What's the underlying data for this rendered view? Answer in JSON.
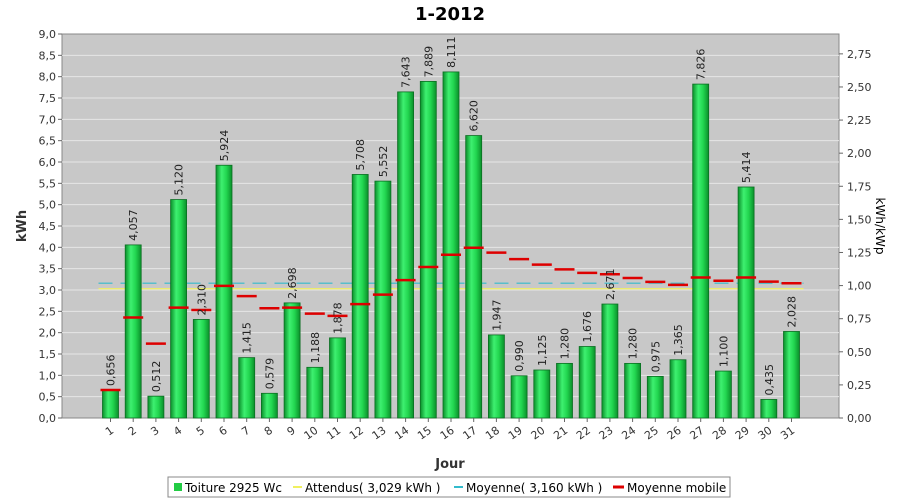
{
  "chart_data": {
    "type": "bar",
    "title": "1-2012",
    "xlabel": "Jour",
    "ylabel": "kWh",
    "ylabel_right": "kWh/kWp",
    "ylim": [
      0,
      9.0
    ],
    "ylim_right": [
      0,
      2.9
    ],
    "y_ticks": [
      "0,0",
      "0,5",
      "1,0",
      "1,5",
      "2,0",
      "2,5",
      "3,0",
      "3,5",
      "4,0",
      "4,5",
      "5,0",
      "5,5",
      "6,0",
      "6,5",
      "7,0",
      "7,5",
      "8,0",
      "8,5",
      "9,0"
    ],
    "y_ticks_right": [
      "0,00",
      "0,25",
      "0,50",
      "0,75",
      "1,00",
      "1,25",
      "1,50",
      "1,75",
      "2,00",
      "2,25",
      "2,50",
      "2,75"
    ],
    "categories": [
      "1",
      "2",
      "3",
      "4",
      "5",
      "6",
      "7",
      "8",
      "9",
      "10",
      "11",
      "12",
      "13",
      "14",
      "15",
      "16",
      "17",
      "18",
      "19",
      "20",
      "21",
      "22",
      "23",
      "24",
      "25",
      "26",
      "27",
      "28",
      "29",
      "30",
      "31"
    ],
    "values": [
      0.656,
      4.057,
      0.512,
      5.12,
      2.31,
      5.924,
      1.415,
      0.579,
      2.698,
      1.188,
      1.878,
      5.708,
      5.552,
      7.643,
      7.889,
      8.111,
      6.62,
      1.947,
      0.99,
      1.125,
      1.28,
      1.676,
      2.671,
      1.28,
      0.975,
      1.365,
      7.826,
      1.1,
      5.414,
      0.435,
      2.028
    ],
    "value_labels": [
      "0,656",
      "4,057",
      "0,512",
      "5,120",
      "2,310",
      "5,924",
      "1,415",
      "0,579",
      "2,698",
      "1,188",
      "1,878",
      "5,708",
      "5,552",
      "7,643",
      "7,889",
      "8,111",
      "6,620",
      "1,947",
      "0,990",
      "1,125",
      "1,280",
      "1,676",
      "2,671",
      "1,280",
      "0,975",
      "1,365",
      "7,826",
      "1,100",
      "5,414",
      "0,435",
      "2,028"
    ],
    "moyenne_mobile": [
      0.656,
      2.356,
      1.742,
      2.586,
      2.531,
      3.097,
      2.857,
      2.572,
      2.586,
      2.446,
      2.394,
      2.67,
      2.891,
      3.23,
      3.54,
      3.826,
      3.99,
      3.876,
      3.724,
      3.594,
      3.484,
      3.401,
      3.369,
      3.282,
      3.19,
      3.12,
      3.294,
      3.216,
      3.292,
      3.197,
      3.159
    ],
    "attendus": 3.029,
    "moyenne": 3.16,
    "grid": true,
    "legend_position": "bottom",
    "series": [
      {
        "name": "Toiture 2925 Wc",
        "color": "#22cc44"
      },
      {
        "name": "Attendus( 3,029 kWh )",
        "color": "#f0f060"
      },
      {
        "name": "Moyenne( 3,160 kWh )",
        "color": "#33bbcc"
      },
      {
        "name": "Moyenne mobile",
        "color": "#dd0000"
      }
    ]
  }
}
